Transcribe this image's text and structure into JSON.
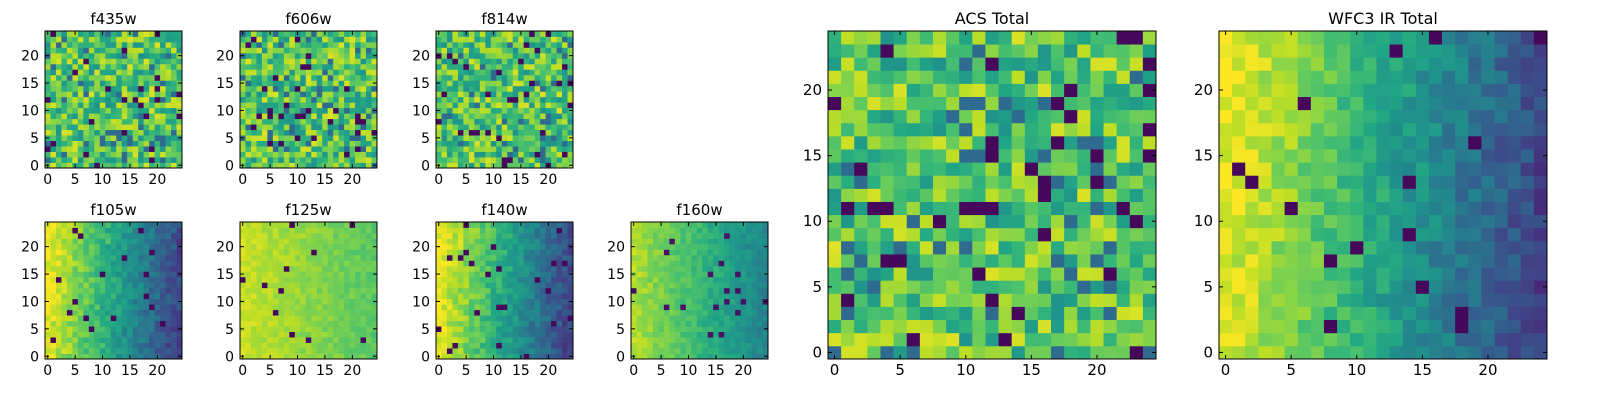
{
  "chart_data": [
    {
      "id": "f435w",
      "type": "heatmap",
      "title": "f435w",
      "colormap": "viridis",
      "grid": "25x25",
      "pattern": "noise",
      "xlim": [
        -0.5,
        24.5
      ],
      "ylim": [
        -0.5,
        24.5
      ],
      "xticks": [
        0,
        5,
        10,
        15,
        20
      ],
      "yticks": [
        0,
        5,
        10,
        15,
        20
      ]
    },
    {
      "id": "f606w",
      "type": "heatmap",
      "title": "f606w",
      "colormap": "viridis",
      "grid": "25x25",
      "pattern": "noise",
      "xlim": [
        -0.5,
        24.5
      ],
      "ylim": [
        -0.5,
        24.5
      ],
      "xticks": [
        0,
        5,
        10,
        15,
        20
      ],
      "yticks": [
        0,
        5,
        10,
        15,
        20
      ]
    },
    {
      "id": "f814w",
      "type": "heatmap",
      "title": "f814w",
      "colormap": "viridis",
      "grid": "25x25",
      "pattern": "noise",
      "xlim": [
        -0.5,
        24.5
      ],
      "ylim": [
        -0.5,
        24.5
      ],
      "xticks": [
        0,
        5,
        10,
        15,
        20
      ],
      "yticks": [
        0,
        5,
        10,
        15,
        20
      ]
    },
    {
      "id": "f105w",
      "type": "heatmap",
      "title": "f105w",
      "colormap": "viridis",
      "grid": "25x25",
      "pattern": "gradient-left-bright",
      "xlim": [
        -0.5,
        24.5
      ],
      "ylim": [
        -0.5,
        24.5
      ],
      "xticks": [
        0,
        5,
        10,
        15,
        20
      ],
      "yticks": [
        0,
        5,
        10,
        15,
        20
      ]
    },
    {
      "id": "f125w",
      "type": "heatmap",
      "title": "f125w",
      "colormap": "viridis",
      "grid": "25x25",
      "pattern": "gradient-bright",
      "xlim": [
        -0.5,
        24.5
      ],
      "ylim": [
        -0.5,
        24.5
      ],
      "xticks": [
        0,
        5,
        10,
        15,
        20
      ],
      "yticks": [
        0,
        5,
        10,
        15,
        20
      ]
    },
    {
      "id": "f140w",
      "type": "heatmap",
      "title": "f140w",
      "colormap": "viridis",
      "grid": "25x25",
      "pattern": "gradient-left-bright",
      "xlim": [
        -0.5,
        24.5
      ],
      "ylim": [
        -0.5,
        24.5
      ],
      "xticks": [
        0,
        5,
        10,
        15,
        20
      ],
      "yticks": [
        0,
        5,
        10,
        15,
        20
      ]
    },
    {
      "id": "f160w",
      "type": "heatmap",
      "title": "f160w",
      "colormap": "viridis",
      "grid": "25x25",
      "pattern": "gradient-mid",
      "xlim": [
        -0.5,
        24.5
      ],
      "ylim": [
        -0.5,
        24.5
      ],
      "xticks": [
        0,
        5,
        10,
        15,
        20
      ],
      "yticks": [
        0,
        5,
        10,
        15,
        20
      ]
    },
    {
      "id": "acs_total",
      "type": "heatmap",
      "title": "ACS Total",
      "colormap": "viridis",
      "grid": "25x25",
      "pattern": "noise",
      "xlim": [
        -0.5,
        24.5
      ],
      "ylim": [
        -0.5,
        24.5
      ],
      "xticks": [
        0,
        5,
        10,
        15,
        20
      ],
      "yticks": [
        0,
        5,
        10,
        15,
        20
      ]
    },
    {
      "id": "wfc3_ir_total",
      "type": "heatmap",
      "title": "WFC3 IR Total",
      "colormap": "viridis",
      "grid": "25x25",
      "pattern": "gradient-left-bright",
      "xlim": [
        -0.5,
        24.5
      ],
      "ylim": [
        -0.5,
        24.5
      ],
      "xticks": [
        0,
        5,
        10,
        15,
        20
      ],
      "yticks": [
        0,
        5,
        10,
        15,
        20
      ]
    }
  ]
}
